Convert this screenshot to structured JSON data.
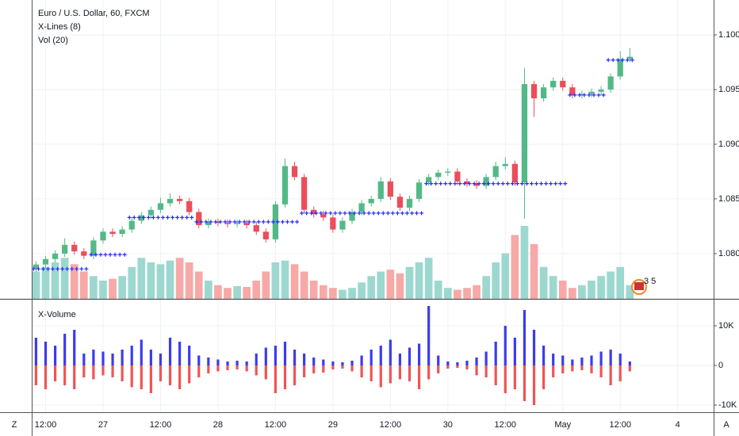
{
  "chart_data": [
    {
      "type": "candlestick",
      "title": "Euro / U.S. Dollar, 60, FXCM",
      "subtitles": [
        "X-Lines (8)",
        "Vol (20)"
      ],
      "event_badge": "3 5",
      "x": [
        10,
        12,
        14,
        16,
        18,
        20,
        22,
        24,
        26,
        28,
        30,
        32,
        34,
        36,
        38,
        40,
        42,
        44,
        46,
        48,
        50,
        52,
        54,
        56,
        58,
        60,
        62,
        64,
        66,
        68,
        70,
        72,
        74,
        76,
        78,
        80,
        82,
        84,
        86,
        88,
        90,
        92,
        94,
        96,
        98,
        100,
        102,
        104,
        106,
        108,
        110,
        112,
        114,
        116,
        118,
        120,
        122,
        124,
        126,
        128,
        130,
        132,
        134
      ],
      "open": [
        1.0786,
        1.079,
        1.0795,
        1.08,
        1.0808,
        1.0802,
        1.0798,
        1.0812,
        1.082,
        1.0818,
        1.0822,
        1.083,
        1.0835,
        1.084,
        1.0846,
        1.085,
        1.0848,
        1.0838,
        1.0826,
        1.0829,
        1.0828,
        1.0827,
        1.0828,
        1.0826,
        1.082,
        1.0813,
        1.0845,
        1.088,
        1.087,
        1.084,
        1.0836,
        1.0833,
        1.0822,
        1.083,
        1.0838,
        1.0846,
        1.085,
        1.0866,
        1.0852,
        1.0842,
        1.085,
        1.0865,
        1.087,
        1.0874,
        1.0875,
        1.0866,
        1.0864,
        1.0862,
        1.087,
        1.088,
        1.0882,
        1.0865,
        1.0955,
        1.0942,
        1.0952,
        1.0958,
        1.0952,
        1.0945,
        1.0946,
        1.0948,
        1.095,
        1.0962,
        1.0978
      ],
      "high": [
        1.0793,
        1.0798,
        1.0803,
        1.0814,
        1.0811,
        1.0805,
        1.0815,
        1.0823,
        1.0823,
        1.0825,
        1.0833,
        1.0838,
        1.0843,
        1.0851,
        1.0855,
        1.0853,
        1.0851,
        1.0841,
        1.0832,
        1.0832,
        1.0831,
        1.0831,
        1.0831,
        1.0829,
        1.0823,
        1.0848,
        1.0887,
        1.0884,
        1.0873,
        1.0843,
        1.0839,
        1.0836,
        1.0833,
        1.0841,
        1.0849,
        1.0853,
        1.087,
        1.0869,
        1.0855,
        1.0853,
        1.0868,
        1.0873,
        1.0877,
        1.0878,
        1.0878,
        1.0869,
        1.0867,
        1.0873,
        1.0884,
        1.0888,
        1.0885,
        1.097,
        1.0958,
        1.0955,
        1.0961,
        1.0961,
        1.0955,
        1.0949,
        1.0951,
        1.0953,
        1.0965,
        1.0985,
        1.0988
      ],
      "low": [
        1.0783,
        1.0787,
        1.0792,
        1.0797,
        1.0799,
        1.0795,
        1.0795,
        1.0809,
        1.0815,
        1.0815,
        1.0819,
        1.0827,
        1.0832,
        1.0837,
        1.0843,
        1.0845,
        1.0835,
        1.0823,
        1.0823,
        1.0825,
        1.0824,
        1.0824,
        1.0823,
        1.0817,
        1.081,
        1.081,
        1.0842,
        1.0867,
        1.0837,
        1.0833,
        1.083,
        1.0819,
        1.0819,
        1.0827,
        1.0835,
        1.0843,
        1.0847,
        1.0849,
        1.0839,
        1.0839,
        1.0847,
        1.0862,
        1.0867,
        1.0871,
        1.0863,
        1.0861,
        1.0859,
        1.0859,
        1.0867,
        1.0877,
        1.0862,
        1.0832,
        1.0925,
        1.0939,
        1.0949,
        1.0949,
        1.0942,
        1.0942,
        1.0943,
        1.0945,
        1.0947,
        1.0959,
        1.0975
      ],
      "close": [
        1.079,
        1.0795,
        1.08,
        1.0808,
        1.0802,
        1.0798,
        1.0812,
        1.082,
        1.0818,
        1.0822,
        1.083,
        1.0835,
        1.084,
        1.0846,
        1.085,
        1.0848,
        1.0838,
        1.0826,
        1.0829,
        1.0828,
        1.0827,
        1.0828,
        1.0826,
        1.082,
        1.0813,
        1.0845,
        1.088,
        1.087,
        1.084,
        1.0836,
        1.0833,
        1.0822,
        1.083,
        1.0838,
        1.0846,
        1.085,
        1.0866,
        1.0852,
        1.0842,
        1.085,
        1.0865,
        1.087,
        1.0874,
        1.0875,
        1.0866,
        1.0864,
        1.0862,
        1.087,
        1.088,
        1.0882,
        1.0865,
        1.0955,
        1.0942,
        1.0952,
        1.0958,
        1.0952,
        1.0945,
        1.0946,
        1.0948,
        1.095,
        1.0962,
        1.0978,
        1.098
      ],
      "volume": [
        30,
        35,
        40,
        45,
        38,
        30,
        25,
        20,
        22,
        25,
        35,
        45,
        40,
        38,
        42,
        45,
        40,
        30,
        20,
        15,
        12,
        14,
        13,
        20,
        30,
        40,
        42,
        38,
        30,
        20,
        15,
        12,
        10,
        12,
        18,
        25,
        30,
        32,
        28,
        35,
        40,
        45,
        20,
        12,
        10,
        12,
        15,
        25,
        40,
        50,
        70,
        80,
        60,
        35,
        25,
        20,
        12,
        15,
        20,
        25,
        30,
        35,
        15
      ],
      "xlines": [
        1.0786,
        1.0786,
        1.0786,
        1.0786,
        1.0786,
        1.0786,
        1.0799,
        1.0799,
        1.0799,
        1.0799,
        1.0833,
        1.0833,
        1.0833,
        1.0833,
        1.0833,
        1.0833,
        1.0833,
        1.0829,
        1.0829,
        1.0829,
        1.0829,
        1.0829,
        1.0829,
        1.0829,
        1.0829,
        1.0829,
        1.0829,
        1.0829,
        1.0837,
        1.0837,
        1.0837,
        1.0837,
        1.0837,
        1.0837,
        1.0837,
        1.0837,
        1.0837,
        1.0837,
        1.0837,
        1.0837,
        1.0837,
        1.0864,
        1.0864,
        1.0864,
        1.0864,
        1.0864,
        1.0864,
        1.0864,
        1.0864,
        1.0864,
        1.0864,
        1.0864,
        1.0864,
        1.0864,
        1.0864,
        1.0864,
        1.0945,
        1.0945,
        1.0945,
        1.0945,
        1.0977,
        1.0977,
        1.0977
      ],
      "up_color": "#53b987",
      "down_color": "#eb4d5c",
      "volume_up_color": "#9cd8cf",
      "volume_down_color": "#f6a9a6",
      "xlines_color": "#2a2aff",
      "xlim": [
        9.1,
        151.5
      ],
      "ylim": [
        1.07586,
        1.10319
      ],
      "yticks": [
        {
          "value": 1.08,
          "label": "1.08000"
        },
        {
          "value": 1.085,
          "label": "1.08500"
        },
        {
          "value": 1.09,
          "label": "1.09000"
        },
        {
          "value": 1.095,
          "label": "1.09500"
        },
        {
          "value": 1.1,
          "label": "1.10000"
        }
      ],
      "grid": true
    },
    {
      "type": "bar",
      "title": "X-Volume",
      "x": [
        10,
        12,
        14,
        16,
        18,
        20,
        22,
        24,
        26,
        28,
        30,
        32,
        34,
        36,
        38,
        40,
        42,
        44,
        46,
        48,
        50,
        52,
        54,
        56,
        58,
        60,
        62,
        64,
        66,
        68,
        70,
        72,
        74,
        76,
        78,
        80,
        82,
        84,
        86,
        88,
        90,
        92,
        94,
        96,
        98,
        100,
        102,
        104,
        106,
        108,
        110,
        112,
        114,
        116,
        118,
        120,
        122,
        124,
        126,
        128,
        130,
        132,
        134
      ],
      "series": [
        {
          "color": "#3b3bf0",
          "values": [
            7000,
            6000,
            5000,
            8000,
            9000,
            3000,
            4000,
            3500,
            3000,
            4000,
            5000,
            6500,
            4000,
            3000,
            7000,
            6000,
            5000,
            2500,
            2000,
            1500,
            1000,
            1200,
            1000,
            3000,
            4500,
            5000,
            6000,
            4000,
            3000,
            2000,
            1500,
            1000,
            800,
            1200,
            2500,
            4000,
            5000,
            6500,
            3000,
            4500,
            5500,
            15000,
            2500,
            1000,
            800,
            1200,
            2000,
            3500,
            6000,
            10000,
            7000,
            14000,
            9000,
            5000,
            3000,
            2500,
            1500,
            2000,
            2500,
            3500,
            4000,
            3000,
            1000
          ]
        },
        {
          "color": "#f05454",
          "values": [
            -5000,
            -6000,
            -4000,
            -5000,
            -6000,
            -3000,
            -3500,
            -2500,
            -3000,
            -4000,
            -5500,
            -6000,
            -7000,
            -4000,
            -5000,
            -6000,
            -4500,
            -3000,
            -2000,
            -1500,
            -1200,
            -1000,
            -1500,
            -2500,
            -3500,
            -7000,
            -6000,
            -5000,
            -3000,
            -2000,
            -1800,
            -1000,
            -800,
            -1500,
            -3000,
            -4000,
            -5500,
            -4500,
            -3500,
            -4000,
            -6000,
            -3500,
            -2000,
            -800,
            -600,
            -1000,
            -2500,
            -3000,
            -5000,
            -7000,
            -6000,
            -9000,
            -10000,
            -6000,
            -3000,
            -2000,
            -1500,
            -1200,
            -2000,
            -3000,
            -5000,
            -4000,
            -1500
          ]
        }
      ],
      "xlim": [
        9.1,
        151.5
      ],
      "ylim": [
        -11800,
        16600
      ],
      "yticks": [
        {
          "value": -10000,
          "label": "-10K"
        },
        0,
        {
          "value": 10000,
          "label": "10K"
        }
      ],
      "xticks": [
        {
          "value": 12,
          "label": "12:00"
        },
        {
          "value": 24,
          "label": "27"
        },
        {
          "value": 36,
          "label": "12:00"
        },
        {
          "value": 48,
          "label": "28"
        },
        {
          "value": 60,
          "label": "12:00"
        },
        {
          "value": 72,
          "label": "29"
        },
        {
          "value": 84,
          "label": "12:00"
        },
        {
          "value": 96,
          "label": "30"
        },
        {
          "value": 108,
          "label": "12:00"
        },
        {
          "value": 120,
          "label": "May"
        },
        {
          "value": 132,
          "label": "12:00"
        },
        {
          "value": 144,
          "label": "4"
        }
      ],
      "grid": true
    }
  ],
  "ui": {
    "left_button": "Z",
    "right_button": "A"
  }
}
